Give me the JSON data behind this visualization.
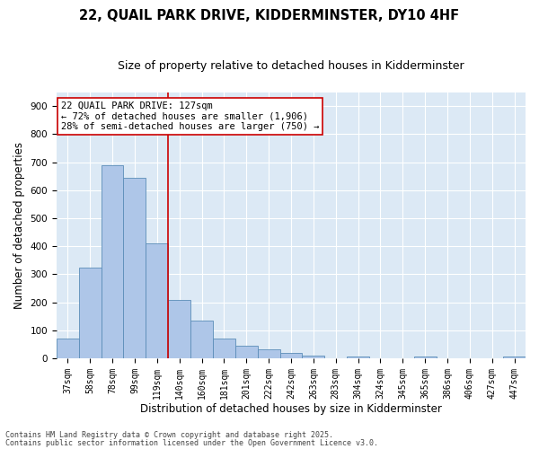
{
  "title_line1": "22, QUAIL PARK DRIVE, KIDDERMINSTER, DY10 4HF",
  "title_line2": "Size of property relative to detached houses in Kidderminster",
  "xlabel": "Distribution of detached houses by size in Kidderminster",
  "ylabel": "Number of detached properties",
  "categories": [
    "37sqm",
    "58sqm",
    "78sqm",
    "99sqm",
    "119sqm",
    "140sqm",
    "160sqm",
    "181sqm",
    "201sqm",
    "222sqm",
    "242sqm",
    "263sqm",
    "283sqm",
    "304sqm",
    "324sqm",
    "345sqm",
    "365sqm",
    "386sqm",
    "406sqm",
    "427sqm",
    "447sqm"
  ],
  "values": [
    72,
    323,
    690,
    645,
    410,
    208,
    136,
    72,
    45,
    32,
    20,
    11,
    0,
    5,
    0,
    0,
    5,
    0,
    0,
    0,
    5
  ],
  "bar_color": "#aec6e8",
  "bar_edge_color": "#5b8db8",
  "vline_x": 4.5,
  "vline_color": "#cc0000",
  "annotation_text": "22 QUAIL PARK DRIVE: 127sqm\n← 72% of detached houses are smaller (1,906)\n28% of semi-detached houses are larger (750) →",
  "annotation_box_color": "#cc0000",
  "background_color": "#dce9f5",
  "ylim": [
    0,
    950
  ],
  "yticks": [
    0,
    100,
    200,
    300,
    400,
    500,
    600,
    700,
    800,
    900
  ],
  "footer_line1": "Contains HM Land Registry data © Crown copyright and database right 2025.",
  "footer_line2": "Contains public sector information licensed under the Open Government Licence v3.0.",
  "title_fontsize": 10.5,
  "subtitle_fontsize": 9,
  "tick_fontsize": 7,
  "ylabel_fontsize": 8.5,
  "xlabel_fontsize": 8.5,
  "annot_fontsize": 7.5,
  "footer_fontsize": 6
}
